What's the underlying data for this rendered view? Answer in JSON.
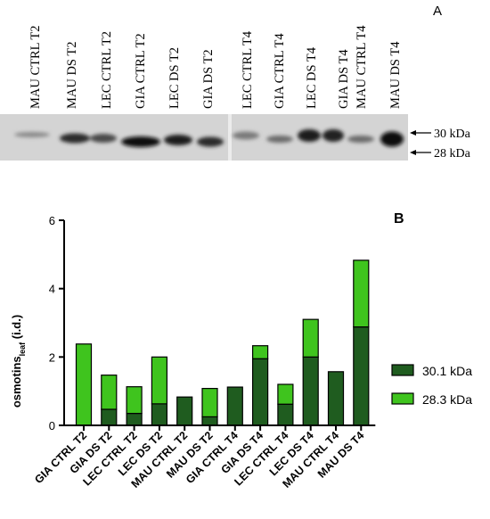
{
  "panel_a": {
    "letter": "A",
    "lanes": [
      "MAU CTRL T2",
      "MAU DS T2",
      "LEC CTRL T2",
      "GIA CTRL T2",
      "LEC DS T2",
      "GIA DS T2",
      "LEC CTRL T4",
      "GIA CTRL T4",
      "LEC DS T4",
      "GIA DS T4",
      "MAU CTRL T4",
      "MAU DS T4"
    ],
    "markers": [
      "30 kDa",
      "28 kDa"
    ]
  },
  "panel_b": {
    "letter": "B"
  },
  "chart_data": {
    "type": "bar",
    "stacked": true,
    "categories": [
      "GIA CTRL T2",
      "GIA DS T2",
      "LEC CTRL T2",
      "LEC DS T2",
      "MAU CTRL T2",
      "MAU DS T2",
      "GIA CTRL T4",
      "GIA DS T4",
      "LEC CTRL T4",
      "LEC DS T4",
      "MAU CTRL T4",
      "MAU DS T4"
    ],
    "series": [
      {
        "name": "30.1 kDa",
        "color": "#1f5c1f",
        "values": [
          0,
          0.47,
          0.35,
          0.63,
          0.83,
          0.25,
          1.12,
          1.95,
          0.62,
          2.0,
          1.57,
          2.88
        ]
      },
      {
        "name": "28.3 kDa",
        "color": "#3fc41e",
        "values": [
          2.38,
          1.0,
          0.78,
          1.37,
          0,
          0.83,
          0,
          0.38,
          0.58,
          1.1,
          0,
          1.95
        ]
      }
    ],
    "ylabel_main": "osmotins",
    "ylabel_sub": "leaf",
    "ylabel_tail": " (i.d.)",
    "ylim": [
      0,
      6
    ],
    "yticks": [
      "0",
      "2",
      "4",
      "6"
    ],
    "legend_position": "right"
  }
}
